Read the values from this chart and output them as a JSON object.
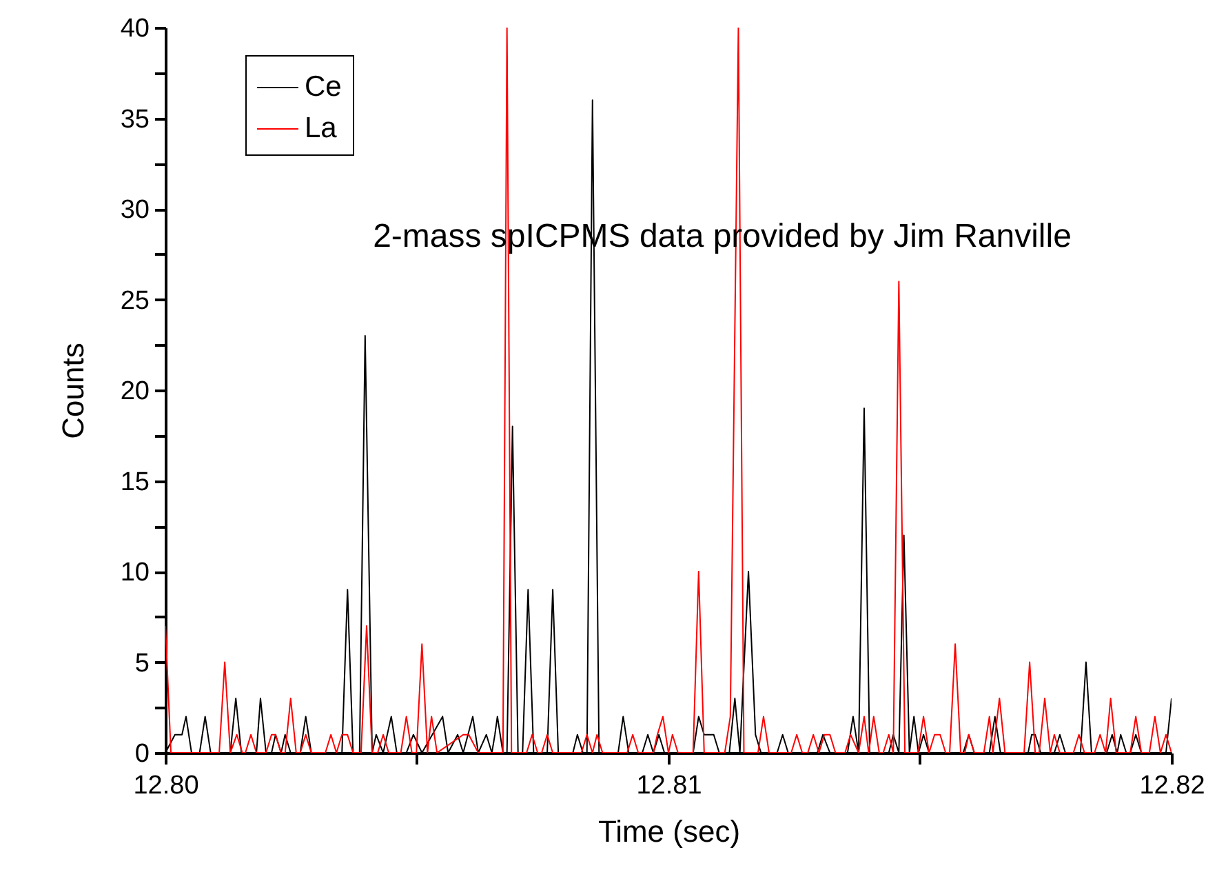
{
  "chart_data": {
    "type": "line",
    "xlabel": "Time (sec)",
    "ylabel": "Counts",
    "annotations": [
      "2-mass spICPMS data provided by Jim Ranville"
    ],
    "xlim": [
      12.8,
      12.82
    ],
    "xticks": [
      {
        "value": 12.8,
        "label": "12.80"
      },
      {
        "value": 12.805,
        "label": null
      },
      {
        "value": 12.81,
        "label": "12.81"
      },
      {
        "value": 12.815,
        "label": null
      },
      {
        "value": 12.82,
        "label": "12.82"
      }
    ],
    "ylim": [
      0,
      40
    ],
    "yticks": [
      0,
      {
        "value": 2.5,
        "label": null
      },
      5,
      {
        "value": 7.5,
        "label": null
      },
      10,
      {
        "value": 12.5,
        "label": null
      },
      15,
      {
        "value": 17.5,
        "label": null
      },
      20,
      {
        "value": 22.5,
        "label": null
      },
      25,
      {
        "value": 27.5,
        "label": null
      },
      30,
      {
        "value": 32.5,
        "label": null
      },
      35,
      {
        "value": 37.5,
        "label": null
      },
      40
    ],
    "legend": "top left",
    "grid": false,
    "marker": "none",
    "line_style": "solid",
    "series": [
      {
        "name": "Ce",
        "color": "#000000",
        "x": [
          12.8,
          12.80019,
          12.80033,
          12.80041,
          12.80052,
          12.80068,
          12.80079,
          12.8009,
          12.80129,
          12.8014,
          12.80151,
          12.80181,
          12.80189,
          12.802,
          12.80211,
          12.80219,
          12.8023,
          12.80238,
          12.80249,
          12.80268,
          12.80279,
          12.8029,
          12.8034,
          12.80351,
          12.80362,
          12.80373,
          12.80386,
          12.80397,
          12.80411,
          12.80419,
          12.80433,
          12.80449,
          12.8046,
          12.80479,
          12.80493,
          12.8051,
          12.80551,
          12.80562,
          12.80581,
          12.80592,
          12.80611,
          12.80622,
          12.80638,
          12.80649,
          12.80655,
          12.8066,
          12.80671,
          12.80679,
          12.8069,
          12.80701,
          12.8071,
          12.80721,
          12.80732,
          12.80759,
          12.8077,
          12.80781,
          12.8081,
          12.80819,
          12.8083,
          12.80838,
          12.80849,
          12.80862,
          12.809,
          12.8091,
          12.80921,
          12.80948,
          12.80959,
          12.8097,
          12.80981,
          12.80992,
          12.81049,
          12.8106,
          12.81071,
          12.8109,
          12.81101,
          12.81121,
          12.81132,
          12.81142,
          12.81159,
          12.81173,
          12.81184,
          12.81216,
          12.81227,
          12.81238,
          12.81296,
          12.81307,
          12.81321,
          12.81356,
          12.81367,
          12.81378,
          12.81389,
          12.814,
          12.81438,
          12.81447,
          12.81458,
          12.81468,
          12.81479,
          12.81488,
          12.81497,
          12.81507,
          12.81518,
          12.81586,
          12.81597,
          12.81608,
          12.81638,
          12.81649,
          12.8166,
          12.81715,
          12.81722,
          12.81729,
          12.8174,
          12.81767,
          12.81778,
          12.81789,
          12.81819,
          12.8183,
          12.81841,
          12.81871,
          12.81882,
          12.81892,
          12.81899,
          12.8191,
          12.81918,
          12.81929,
          12.8194,
          12.81989,
          12.82
        ],
        "values": [
          0,
          1,
          1,
          2,
          0,
          0,
          2,
          0,
          0,
          3,
          0,
          0,
          3,
          0,
          0,
          1,
          0,
          1,
          0,
          0,
          2,
          0,
          0,
          0,
          9,
          0,
          0,
          23,
          0,
          1,
          0,
          2,
          0,
          0,
          1,
          0,
          2,
          0,
          1,
          0,
          2,
          0,
          1,
          0,
          1,
          2,
          0,
          0,
          18,
          0,
          0,
          9,
          0,
          0,
          9,
          0,
          0,
          1,
          0,
          0,
          36,
          0,
          0,
          2,
          0,
          0,
          1,
          0,
          1,
          0,
          0,
          2,
          1,
          1,
          0,
          0,
          3,
          0,
          10,
          1,
          0,
          0,
          1,
          0,
          0,
          1,
          0,
          0,
          2,
          0,
          19,
          0,
          0,
          1,
          0,
          12,
          0,
          2,
          0,
          1,
          0,
          0,
          1,
          0,
          0,
          2,
          0,
          0,
          1,
          1,
          0,
          0,
          1,
          0,
          0,
          5,
          0,
          0,
          1,
          0,
          1,
          0,
          0,
          1,
          0,
          0,
          3
        ]
      },
      {
        "name": "La",
        "color": "#ff0000",
        "x": [
          12.8,
          12.80011,
          12.80107,
          12.80118,
          12.80129,
          12.80142,
          12.80153,
          12.80159,
          12.8017,
          12.80181,
          12.802,
          12.80211,
          12.80219,
          12.8023,
          12.80238,
          12.80249,
          12.8026,
          12.80268,
          12.80279,
          12.8029,
          12.80318,
          12.80329,
          12.8034,
          12.80351,
          12.80362,
          12.80373,
          12.80389,
          12.804,
          12.80411,
          12.80422,
          12.80433,
          12.80444,
          12.80468,
          12.80479,
          12.8049,
          12.80499,
          12.8051,
          12.80521,
          12.80529,
          12.8054,
          12.80592,
          12.80603,
          12.80622,
          12.80633,
          12.80671,
          12.80679,
          12.80688,
          12.80718,
          12.80729,
          12.8074,
          12.80748,
          12.80759,
          12.8077,
          12.80827,
          12.80838,
          12.80849,
          12.80858,
          12.80869,
          12.80918,
          12.80929,
          12.8094,
          12.8097,
          12.80978,
          12.80989,
          12.81,
          12.81008,
          12.81019,
          12.81049,
          12.8106,
          12.81071,
          12.81112,
          12.81123,
          12.81139,
          12.8115,
          12.81162,
          12.81178,
          12.81189,
          12.812,
          12.81244,
          12.81255,
          12.81266,
          12.81277,
          12.81288,
          12.81299,
          12.8131,
          12.81321,
          12.81332,
          12.81351,
          12.81362,
          12.81378,
          12.81389,
          12.81398,
          12.81408,
          12.81419,
          12.81427,
          12.81438,
          12.81447,
          12.81458,
          12.8147,
          12.81496,
          12.81507,
          12.81518,
          12.81529,
          12.8154,
          12.81551,
          12.81559,
          12.8157,
          12.81581,
          12.81589,
          12.81597,
          12.81608,
          12.81627,
          12.81638,
          12.81645,
          12.81658,
          12.81669,
          12.81707,
          12.81718,
          12.81729,
          12.81737,
          12.81748,
          12.81759,
          12.81767,
          12.81778,
          12.81805,
          12.81816,
          12.81827,
          12.81847,
          12.81858,
          12.81869,
          12.81879,
          12.8189,
          12.81918,
          12.81929,
          12.8194,
          12.81956,
          12.81967,
          12.81978,
          12.81989,
          12.82
        ],
        "values": [
          7,
          0,
          0,
          5,
          0,
          1,
          0,
          0,
          1,
          0,
          0,
          1,
          1,
          0,
          0,
          3,
          0,
          0,
          1,
          0,
          0,
          1,
          0,
          1,
          1,
          0,
          0,
          7,
          0,
          0,
          1,
          0,
          0,
          2,
          0,
          0,
          6,
          0,
          2,
          0,
          1,
          1,
          0,
          0,
          0,
          40,
          0,
          0,
          1,
          0,
          0,
          1,
          0,
          0,
          1,
          0,
          1,
          0,
          0,
          1,
          0,
          0,
          1,
          2,
          0,
          1,
          0,
          0,
          10,
          0,
          0,
          2,
          40,
          0,
          0,
          0,
          2,
          0,
          0,
          1,
          0,
          0,
          1,
          0,
          1,
          1,
          0,
          0,
          1,
          0,
          2,
          0,
          2,
          0,
          0,
          1,
          0,
          26,
          0,
          0,
          2,
          0,
          1,
          1,
          0,
          0,
          6,
          0,
          0,
          1,
          0,
          0,
          2,
          0,
          3,
          0,
          0,
          5,
          0,
          0,
          3,
          0,
          1,
          0,
          0,
          1,
          0,
          0,
          1,
          0,
          3,
          0,
          0,
          2,
          0,
          0,
          2,
          0,
          1,
          0
        ]
      }
    ]
  }
}
